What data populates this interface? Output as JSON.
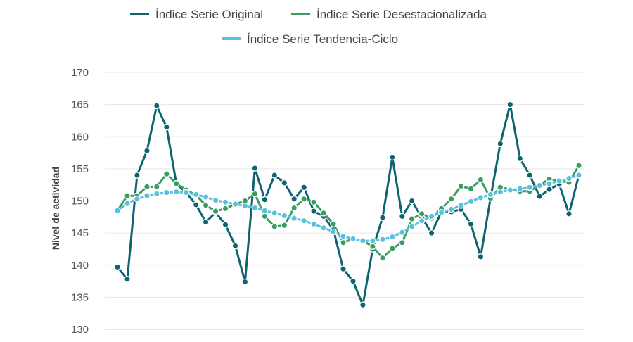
{
  "chart_data": {
    "type": "line",
    "ylabel": "Nivel de actividad",
    "ylim": [
      130,
      170
    ],
    "yticks": [
      130,
      135,
      140,
      145,
      150,
      155,
      160,
      165,
      170
    ],
    "grid": true,
    "legend_position": "top",
    "series": [
      {
        "name": "Índice Serie Original",
        "color": "#0d6470",
        "values": [
          139.7,
          137.8,
          154.0,
          157.8,
          164.8,
          161.5,
          152.7,
          151.3,
          149.4,
          146.7,
          148.2,
          146.3,
          143.0,
          137.4,
          155.1,
          150.2,
          154.0,
          152.8,
          150.3,
          152.1,
          148.4,
          147.6,
          145.5,
          139.4,
          137.5,
          133.8,
          142.5,
          147.4,
          156.8,
          147.6,
          150.0,
          147.4,
          145.0,
          148.3,
          148.3,
          148.7,
          146.4,
          141.3,
          150.4,
          158.9,
          165.0,
          156.6,
          154.0,
          150.7,
          151.8,
          152.6,
          148.0,
          154.0
        ]
      },
      {
        "name": "Índice Serie Desestacionalizada",
        "color": "#3a9e63",
        "values": [
          148.5,
          150.8,
          150.8,
          152.2,
          152.2,
          154.2,
          152.7,
          151.7,
          150.9,
          149.3,
          148.4,
          148.8,
          149.5,
          150.0,
          151.1,
          147.6,
          146.0,
          146.2,
          148.9,
          150.3,
          149.8,
          148.1,
          146.4,
          143.5,
          144.1,
          143.8,
          142.9,
          141.1,
          142.6,
          143.5,
          147.2,
          148.0,
          147.3,
          148.8,
          150.3,
          152.3,
          151.9,
          153.3,
          150.4,
          152.1,
          151.8,
          151.5,
          151.5,
          152.5,
          153.4,
          153.1,
          152.9,
          155.5
        ]
      },
      {
        "name": "Índice Serie Tendencia-Ciclo",
        "color": "#5bc0de",
        "values": [
          148.5,
          149.6,
          150.3,
          150.8,
          151.1,
          151.3,
          151.4,
          151.3,
          151.0,
          150.6,
          150.1,
          149.8,
          149.5,
          149.2,
          148.9,
          148.5,
          148.1,
          147.7,
          147.3,
          146.9,
          146.4,
          145.8,
          145.2,
          144.5,
          144.1,
          143.8,
          143.8,
          144.0,
          144.4,
          145.1,
          146.0,
          146.9,
          147.6,
          148.2,
          148.7,
          149.3,
          149.9,
          150.5,
          151.0,
          151.4,
          151.7,
          151.9,
          152.1,
          152.4,
          152.7,
          153.1,
          153.5,
          154.0
        ]
      }
    ]
  }
}
